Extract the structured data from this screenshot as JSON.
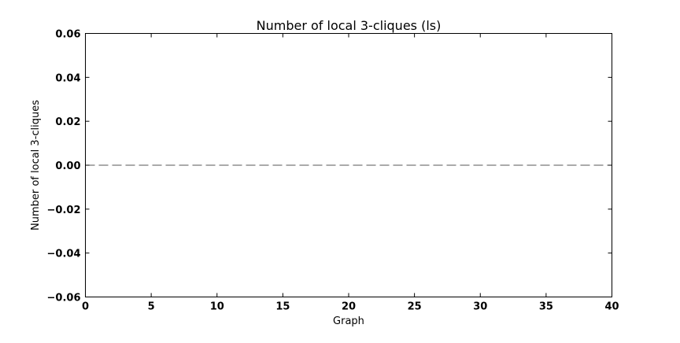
{
  "chart_data": {
    "type": "line",
    "title": "Number of local 3-cliques (ls)",
    "xlabel": "Graph",
    "ylabel": "Number of local 3-cliques",
    "xlim": [
      0,
      40
    ],
    "ylim": [
      -0.06,
      0.06
    ],
    "x_ticks": [
      0,
      5,
      10,
      15,
      20,
      25,
      30,
      35,
      40
    ],
    "x_tick_labels": [
      "0",
      "5",
      "10",
      "15",
      "20",
      "25",
      "30",
      "35",
      "40"
    ],
    "y_ticks": [
      0.06,
      0.04,
      0.02,
      0.0,
      -0.02,
      -0.04,
      -0.06
    ],
    "y_tick_labels": [
      "0.06",
      "0.04",
      "0.02",
      "0.00",
      "−0.02",
      "−0.04",
      "−0.06"
    ],
    "grid": false,
    "series": [
      {
        "line_style": "dashed",
        "color": "#555555",
        "x": [
          0,
          40
        ],
        "y": [
          0,
          0
        ]
      }
    ]
  }
}
